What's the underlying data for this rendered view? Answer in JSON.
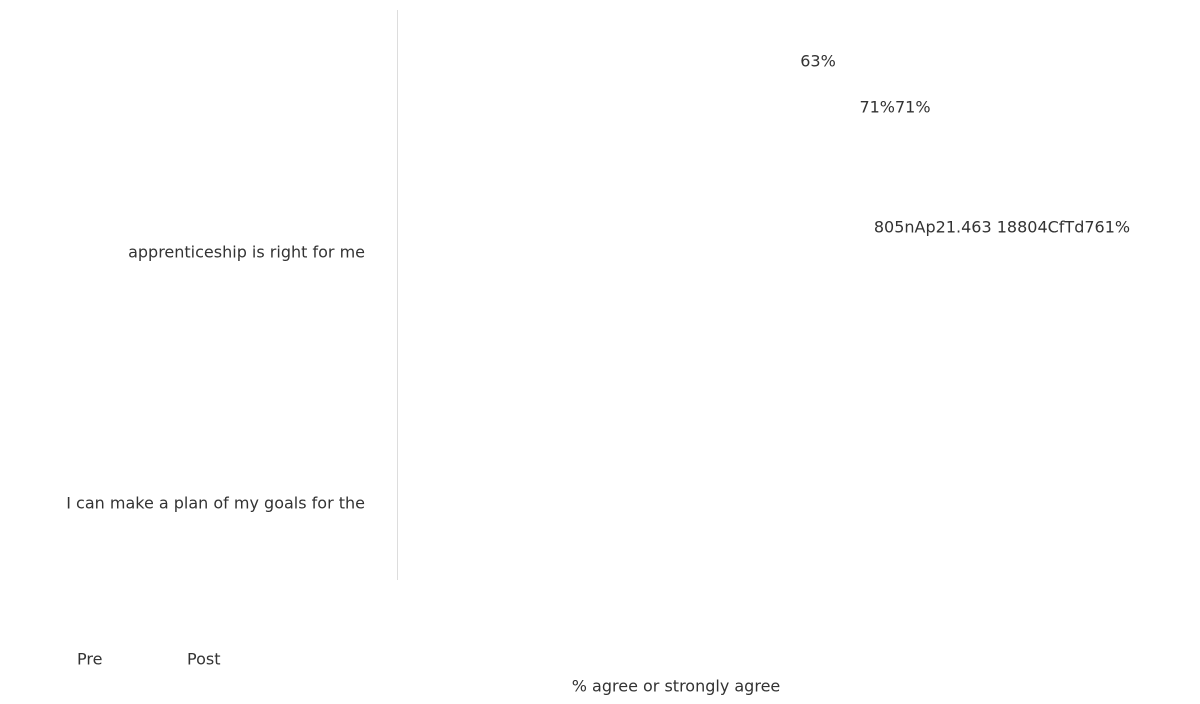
{
  "labels": [
    "63%",
    "71%71%",
    "805nAp21.463 18804CfTd761%"
  ],
  "categories": [
    "apprenticeship is right for me",
    "I can make a plan of my goals for the"
  ],
  "legend": [
    "Pre",
    "Post"
  ],
  "axis_label": "% agree or strongly agree"
}
